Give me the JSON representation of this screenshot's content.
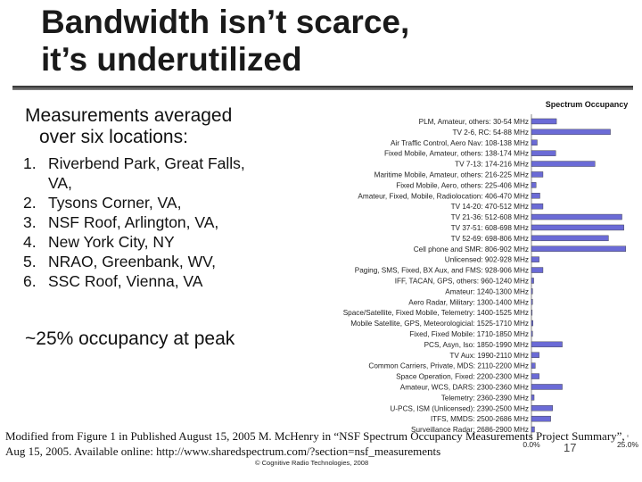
{
  "title_line1": "Bandwidth isn’t scarce,",
  "title_line2": "it’s underutilized",
  "lead_line1": "Measurements averaged",
  "lead_line2": "over six locations:",
  "locations": [
    {
      "num": "1.",
      "text": "Riverbend Park, Great Falls, VA,"
    },
    {
      "num": "2.",
      "text": "Tysons Corner, VA,"
    },
    {
      "num": "3.",
      "text": "NSF Roof, Arlington, VA,"
    },
    {
      "num": "4.",
      "text": "New York City, NY"
    },
    {
      "num": "5.",
      "text": "NRAO, Greenbank, WV,"
    },
    {
      "num": "6.",
      "text": "SSC Roof, Vienna, VA"
    }
  ],
  "peak_text": "~25% occupancy at peak",
  "credit_text": "Modified from Figure 1 in Published August 15, 2005 M. McHenry in “NSF Spectrum Occupancy Measurements Project Summary”, Aug 15, 2005. Available online: http://www.sharedspectrum.com/?section=nsf_measurements",
  "copyright": "© Cognitive Radio Technologies, 2008",
  "slide_number": "17",
  "chart_data": {
    "type": "bar",
    "title": "Spectrum Occupancy",
    "bar_color": "#6b6bd6",
    "xlim": [
      0,
      25
    ],
    "xticks": [
      "0.0%",
      "25.0%"
    ],
    "categories": [
      "PLM, Amateur, others: 30-54 MHz",
      "TV 2-6, RC: 54-88 MHz",
      "Air Traffic Control, Aero Nav: 108-138 MHz",
      "Fixed Mobile, Amateur, others: 138-174 MHz",
      "TV 7-13: 174-216 MHz",
      "Maritime Mobile, Amateur, others: 216-225 MHz",
      "Fixed Mobile, Aero, others: 225-406 MHz",
      "Amateur, Fixed, Mobile, Radiolocation: 406-470 MHz",
      "TV 14-20: 470-512 MHz",
      "TV 21-36: 512-608 MHz",
      "TV 37-51: 608-698 MHz",
      "TV 52-69: 698-806 MHz",
      "Cell phone and SMR: 806-902 MHz",
      "Unlicensed: 902-928 MHz",
      "Paging, SMS, Fixed, BX Aux, and FMS: 928-906 MHz",
      "IFF, TACAN, GPS, others: 960-1240 MHz",
      "Amateur: 1240-1300 MHz",
      "Aero Radar, Military: 1300-1400 MHz",
      "Space/Satellite, Fixed Mobile, Telemetry: 1400-1525 MHz",
      "Mobile Satellite, GPS, Meteorologicial: 1525-1710 MHz",
      "Fixed, Fixed Mobile: 1710-1850 MHz",
      "PCS, Asyn, Iso: 1850-1990 MHz",
      "TV Aux: 1990-2110 MHz",
      "Common Carriers, Private, MDS: 2110-2200 MHz",
      "Space Operation, Fixed: 2200-2300 MHz",
      "Amateur, WCS, DARS: 2300-2360 MHz",
      "Telemetry: 2360-2390 MHz",
      "U-PCS, ISM (Unlicensed): 2390-2500 MHz",
      "ITFS, MMDS: 2500-2686 MHz",
      "Surveillance Radar: 2686-2900 MHz"
    ],
    "values": [
      6.5,
      20.5,
      1.5,
      6.3,
      16.5,
      3.0,
      1.2,
      2.2,
      3.0,
      23.5,
      24.0,
      20.0,
      24.5,
      2.0,
      3.0,
      0.6,
      0.3,
      0.3,
      0.2,
      0.4,
      0.3,
      8.0,
      2.0,
      1.0,
      2.0,
      8.0,
      0.7,
      5.5,
      5.0,
      0.8
    ]
  }
}
